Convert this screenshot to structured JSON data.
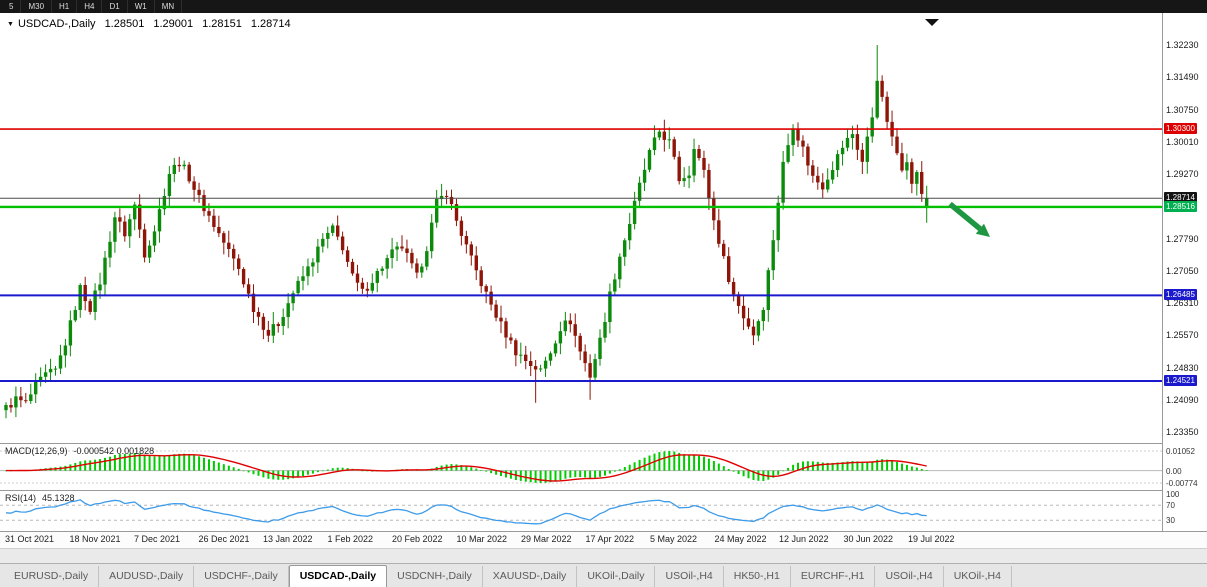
{
  "icons": {
    "chart_menu": "▼"
  },
  "toolbar": {
    "timeframes": [
      "5",
      "M30",
      "H1",
      "H4",
      "D1",
      "W1",
      "MN"
    ]
  },
  "chart_data": {
    "type": "candlestick",
    "symbol": "USDCAD-,Daily",
    "quote": {
      "open": "1.28501",
      "high": "1.29001",
      "low": "1.28151",
      "close": "1.28714"
    },
    "price_axis": {
      "top_price": 1.3223,
      "bottom_price": 1.2335,
      "visible_labels": [
        "1.32230",
        "1.31490",
        "1.30750",
        "1.30010",
        "1.29270",
        "1.27790",
        "1.27050",
        "1.26310",
        "1.25570",
        "1.24830",
        "1.24090",
        "1.23350"
      ]
    },
    "badges": [
      {
        "text": "1.30300",
        "price": 1.303,
        "bg": "#dd0000",
        "fg": "#ffffff",
        "name": "resistance-price-badge"
      },
      {
        "text": "1.28714",
        "price": 1.28714,
        "bg": "#141414",
        "fg": "#ffffff",
        "name": "current-price-badge"
      },
      {
        "text": "1.28516",
        "price": 1.28516,
        "bg": "#00b050",
        "fg": "#ffffff",
        "name": "support-green-price-badge"
      },
      {
        "text": "1.26485",
        "price": 1.26485,
        "bg": "#1a1acc",
        "fg": "#ffffff",
        "name": "support-blue-price-badge-1"
      },
      {
        "text": "1.24521",
        "price": 1.24521,
        "bg": "#1a1acc",
        "fg": "#ffffff",
        "name": "support-blue-price-badge-2"
      }
    ],
    "levels": [
      {
        "price": 1.303,
        "color": "#dd0000",
        "width": 1.6,
        "name": "resistance-line-red"
      },
      {
        "price": 1.28714,
        "color": "#4a4a4a",
        "width": 1,
        "name": "current-price-line"
      },
      {
        "price": 1.28516,
        "color": "#00c000",
        "width": 2.4,
        "name": "support-line-green"
      },
      {
        "price": 1.26485,
        "color": "#1a1acc",
        "width": 2,
        "name": "support-line-blue-1"
      },
      {
        "price": 1.24521,
        "color": "#1a1acc",
        "width": 2,
        "name": "support-line-blue-2"
      }
    ],
    "candles": {
      "count": 187,
      "bull_color": "#0c8a0c",
      "bear_color": "#8e1508",
      "anchors": [
        [
          0,
          1.239
        ],
        [
          2,
          1.241
        ],
        [
          4,
          1.24
        ],
        [
          6,
          1.244
        ],
        [
          8,
          1.2465
        ],
        [
          10,
          1.2475
        ],
        [
          12,
          1.254
        ],
        [
          15,
          1.2665
        ],
        [
          17,
          1.262
        ],
        [
          19,
          1.268
        ],
        [
          22,
          1.283
        ],
        [
          24,
          1.279
        ],
        [
          26,
          1.2855
        ],
        [
          28,
          1.2745
        ],
        [
          30,
          1.28
        ],
        [
          33,
          1.293
        ],
        [
          35,
          1.2955
        ],
        [
          37,
          1.292
        ],
        [
          39,
          1.287
        ],
        [
          41,
          1.283
        ],
        [
          44,
          1.277
        ],
        [
          47,
          1.271
        ],
        [
          50,
          1.262
        ],
        [
          53,
          1.256
        ],
        [
          55,
          1.2585
        ],
        [
          58,
          1.2655
        ],
        [
          61,
          1.271
        ],
        [
          64,
          1.2775
        ],
        [
          66,
          1.28
        ],
        [
          68,
          1.276
        ],
        [
          70,
          1.269
        ],
        [
          72,
          1.2655
        ],
        [
          75,
          1.27
        ],
        [
          78,
          1.2745
        ],
        [
          80,
          1.276
        ],
        [
          83,
          1.269
        ],
        [
          85,
          1.276
        ],
        [
          87,
          1.286
        ],
        [
          89,
          1.2885
        ],
        [
          91,
          1.282
        ],
        [
          94,
          1.273
        ],
        [
          97,
          1.265
        ],
        [
          100,
          1.258
        ],
        [
          103,
          1.252
        ],
        [
          106,
          1.249
        ],
        [
          108,
          1.2475
        ],
        [
          110,
          1.252
        ],
        [
          112,
          1.2575
        ],
        [
          114,
          1.259
        ],
        [
          116,
          1.252
        ],
        [
          118,
          1.2465
        ],
        [
          120,
          1.2545
        ],
        [
          122,
          1.265
        ],
        [
          124,
          1.274
        ],
        [
          126,
          1.2815
        ],
        [
          128,
          1.29
        ],
        [
          130,
          1.2975
        ],
        [
          132,
          1.3025
        ],
        [
          134,
          1.3
        ],
        [
          136,
          1.2915
        ],
        [
          138,
          1.293
        ],
        [
          139,
          1.2995
        ],
        [
          141,
          1.293
        ],
        [
          143,
          1.282
        ],
        [
          145,
          1.273
        ],
        [
          147,
          1.265
        ],
        [
          149,
          1.26
        ],
        [
          151,
          1.256
        ],
        [
          153,
          1.2625
        ],
        [
          155,
          1.278
        ],
        [
          157,
          1.295
        ],
        [
          159,
          1.304
        ],
        [
          161,
          1.2985
        ],
        [
          163,
          1.292
        ],
        [
          165,
          1.29
        ],
        [
          167,
          1.2945
        ],
        [
          169,
          1.299
        ],
        [
          171,
          1.302
        ],
        [
          173,
          1.2955
        ],
        [
          175,
          1.306
        ],
        [
          176,
          1.315
        ],
        [
          177,
          1.3095
        ],
        [
          179,
          1.3005
        ],
        [
          181,
          1.2945
        ],
        [
          182,
          1.2965
        ],
        [
          183,
          1.29
        ],
        [
          184,
          1.2935
        ],
        [
          185,
          1.2875
        ],
        [
          186,
          1.28714
        ]
      ],
      "wick_overrides": {
        "107": {
          "low": 1.2402
        },
        "118": {
          "low": 1.2409
        },
        "176": {
          "high": 1.3223
        }
      },
      "last": {
        "open": 1.28501,
        "high": 1.29001,
        "low": 1.28151,
        "close": 1.28714
      }
    },
    "annotations": {
      "arrow_color": "#1f9642"
    }
  },
  "macd": {
    "label": "MACD(12,26,9)",
    "values": "-0.000542 0.001828",
    "axis_labels": [
      "0.01052",
      "0.00",
      "-0.00774"
    ],
    "histogram_color": "#00cc00",
    "signal_color": "#e00000"
  },
  "rsi": {
    "label": "RSI(14)",
    "value": "45.1328",
    "axis_labels": [
      "100",
      "70",
      "30"
    ],
    "levels": [
      70,
      30
    ],
    "line_color": "#3d9be9"
  },
  "date_axis": {
    "labels": [
      "31 Oct 2021",
      "18 Nov 2021",
      "7 Dec 2021",
      "26 Dec 2021",
      "13 Jan 2022",
      "1 Feb 2022",
      "20 Feb 2022",
      "10 Mar 2022",
      "29 Mar 2022",
      "17 Apr 2022",
      "5 May 2022",
      "24 May 2022",
      "12 Jun 2022",
      "30 Jun 2022",
      "19 Jul 2022"
    ]
  },
  "tabs": {
    "items": [
      {
        "label": "EURUSD-,Daily",
        "active": false
      },
      {
        "label": "AUDUSD-,Daily",
        "active": false
      },
      {
        "label": "USDCHF-,Daily",
        "active": false
      },
      {
        "label": "USDCAD-,Daily",
        "active": true
      },
      {
        "label": "USDCNH-,Daily",
        "active": false
      },
      {
        "label": "XAUUSD-,Daily",
        "active": false
      },
      {
        "label": "UKOil-,Daily",
        "active": false
      },
      {
        "label": "USOil-,H4",
        "active": false
      },
      {
        "label": "HK50-,H1",
        "active": false
      },
      {
        "label": "EURCHF-,H1",
        "active": false
      },
      {
        "label": "USOil-,H4",
        "active": false
      },
      {
        "label": "UKOil-,H4",
        "active": false
      }
    ]
  }
}
